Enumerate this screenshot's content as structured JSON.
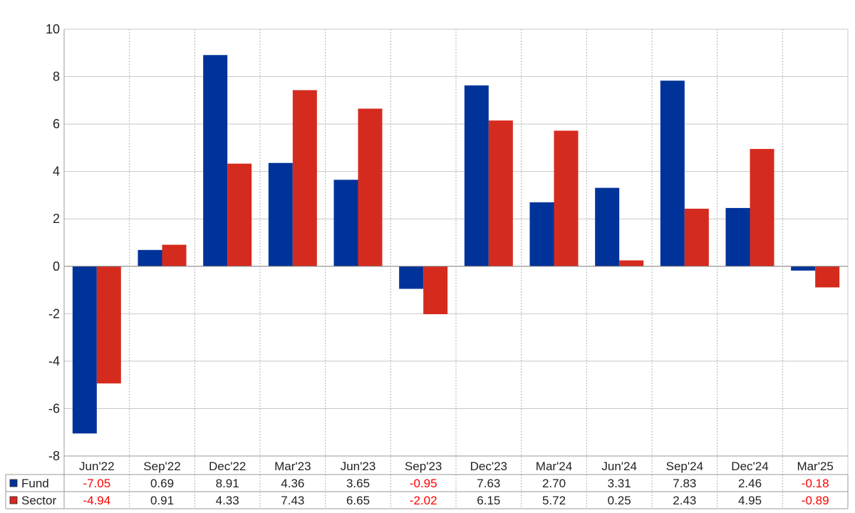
{
  "chart_data": {
    "type": "bar",
    "categories": [
      "Jun'22",
      "Sep'22",
      "Dec'22",
      "Mar'23",
      "Jun'23",
      "Sep'23",
      "Dec'23",
      "Mar'24",
      "Jun'24",
      "Sep'24",
      "Dec'24",
      "Mar'25"
    ],
    "series": [
      {
        "name": "Fund",
        "color": "#003399",
        "values": [
          -7.05,
          0.69,
          8.91,
          4.36,
          3.65,
          -0.95,
          7.63,
          2.7,
          3.31,
          7.83,
          2.46,
          -0.18
        ],
        "labels": [
          "-7.05",
          "0.69",
          "8.91",
          "4.36",
          "3.65",
          "-0.95",
          "7.63",
          "2.70",
          "3.31",
          "7.83",
          "2.46",
          "-0.18"
        ]
      },
      {
        "name": "Sector",
        "color": "#d52b1e",
        "values": [
          -4.94,
          0.91,
          4.33,
          7.43,
          6.65,
          -2.02,
          6.15,
          5.72,
          0.25,
          2.43,
          4.95,
          -0.89
        ],
        "labels": [
          "-4.94",
          "0.91",
          "4.33",
          "7.43",
          "6.65",
          "-2.02",
          "6.15",
          "5.72",
          "0.25",
          "2.43",
          "4.95",
          "-0.89"
        ]
      }
    ],
    "ylim": [
      -8,
      10
    ],
    "yticks": [
      10,
      8,
      6,
      4,
      2,
      0,
      -2,
      -4,
      -6,
      -8
    ],
    "ytick_labels": [
      "10",
      "8",
      "6",
      "4",
      "2",
      "0",
      "-2",
      "-4",
      "-6",
      "-8"
    ],
    "grid": true,
    "legend": "data-table-left",
    "negative_value_color": "#ff0000",
    "positive_value_color": "#222222"
  }
}
